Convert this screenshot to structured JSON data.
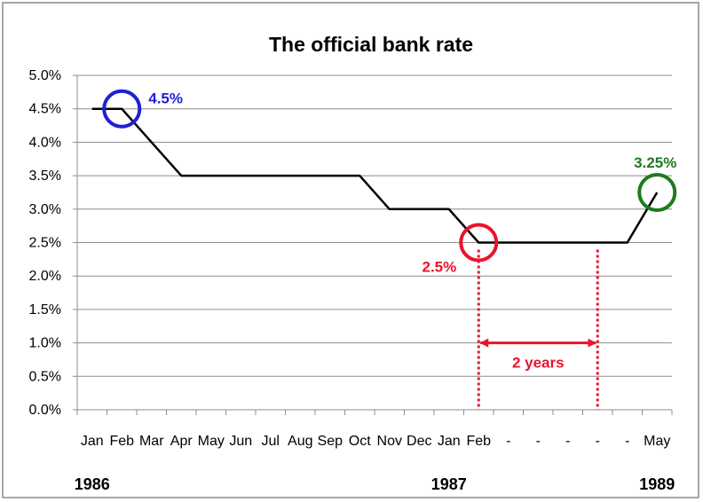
{
  "chart_data": {
    "type": "line",
    "title": "The official bank rate",
    "xlabel": "",
    "ylabel": "",
    "categories": [
      "Jan",
      "Feb",
      "Mar",
      "Apr",
      "May",
      "Jun",
      "Jul",
      "Aug",
      "Sep",
      "Oct",
      "Nov",
      "Dec",
      "Jan",
      "Feb",
      "-",
      "-",
      "-",
      "-",
      "-",
      "May"
    ],
    "year_labels": [
      {
        "text": "1986",
        "category_index": 0
      },
      {
        "text": "1987",
        "category_index": 12
      },
      {
        "text": "1989",
        "category_index": 19
      }
    ],
    "series": [
      {
        "values": [
          4.5,
          4.5,
          4.0,
          3.5,
          3.5,
          3.5,
          3.5,
          3.5,
          3.5,
          3.5,
          3.0,
          3.0,
          3.0,
          2.5,
          2.5,
          2.5,
          2.5,
          2.5,
          2.5,
          3.25
        ],
        "color": "#000000"
      }
    ],
    "ylim": [
      0,
      5
    ],
    "ytick_step": 0.5,
    "ytick_labels": [
      "0.0%",
      "0.5%",
      "1.0%",
      "1.5%",
      "2.0%",
      "2.5%",
      "3.0%",
      "3.5%",
      "4.0%",
      "4.5%",
      "5.0%"
    ],
    "grid": true,
    "legend": "none",
    "annotations": [
      {
        "label": "4.5%",
        "category_index": 1,
        "value": 4.5,
        "color": "#1f1fd6",
        "shape": "circle"
      },
      {
        "label": "2.5%",
        "category_index": 13,
        "value": 2.5,
        "color": "#e8142c",
        "shape": "circle"
      },
      {
        "label": "3.25%",
        "category_index": 19,
        "value": 3.25,
        "color": "#1e7b1e",
        "shape": "circle"
      },
      {
        "label": "2 years",
        "from_index": 13,
        "to_index": 17,
        "value": 1.0,
        "color": "#e8142c",
        "shape": "double-arrow"
      }
    ]
  }
}
